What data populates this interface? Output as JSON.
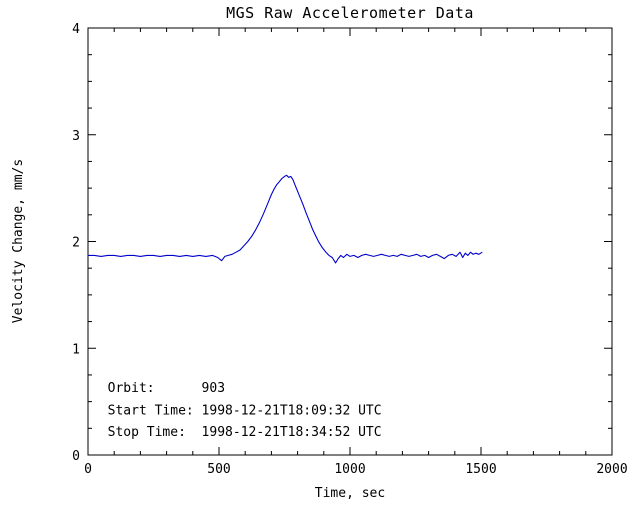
{
  "chart_data": {
    "type": "line",
    "title": "MGS Raw Accelerometer Data",
    "xlabel": "Time, sec",
    "ylabel": "Velocity Change, mm/s",
    "xlim": [
      0,
      2000
    ],
    "ylim": [
      0,
      4
    ],
    "xticks": [
      0,
      500,
      1000,
      1500,
      2000
    ],
    "yticks": [
      0,
      1,
      2,
      3,
      4
    ],
    "x_minor_step": 100,
    "y_minor_step": 0.25,
    "grid": false,
    "background_color": "#ffffff",
    "axis_color": "#000000",
    "line_color": "#0000cc",
    "series": [
      {
        "name": "velocity-change",
        "points": [
          [
            0,
            1.87
          ],
          [
            25,
            1.87
          ],
          [
            50,
            1.86
          ],
          [
            75,
            1.87
          ],
          [
            100,
            1.87
          ],
          [
            125,
            1.86
          ],
          [
            150,
            1.87
          ],
          [
            175,
            1.87
          ],
          [
            200,
            1.86
          ],
          [
            225,
            1.87
          ],
          [
            250,
            1.87
          ],
          [
            275,
            1.86
          ],
          [
            300,
            1.87
          ],
          [
            325,
            1.87
          ],
          [
            350,
            1.86
          ],
          [
            375,
            1.87
          ],
          [
            400,
            1.86
          ],
          [
            425,
            1.87
          ],
          [
            450,
            1.86
          ],
          [
            475,
            1.87
          ],
          [
            495,
            1.85
          ],
          [
            510,
            1.82
          ],
          [
            522,
            1.86
          ],
          [
            535,
            1.87
          ],
          [
            550,
            1.88
          ],
          [
            565,
            1.9
          ],
          [
            580,
            1.92
          ],
          [
            595,
            1.96
          ],
          [
            610,
            2.0
          ],
          [
            625,
            2.05
          ],
          [
            640,
            2.11
          ],
          [
            655,
            2.18
          ],
          [
            670,
            2.26
          ],
          [
            685,
            2.35
          ],
          [
            700,
            2.44
          ],
          [
            710,
            2.49
          ],
          [
            720,
            2.53
          ],
          [
            730,
            2.56
          ],
          [
            740,
            2.59
          ],
          [
            750,
            2.61
          ],
          [
            758,
            2.62
          ],
          [
            766,
            2.6
          ],
          [
            774,
            2.61
          ],
          [
            782,
            2.58
          ],
          [
            790,
            2.53
          ],
          [
            800,
            2.47
          ],
          [
            810,
            2.41
          ],
          [
            820,
            2.35
          ],
          [
            832,
            2.27
          ],
          [
            845,
            2.19
          ],
          [
            858,
            2.11
          ],
          [
            870,
            2.05
          ],
          [
            882,
            1.99
          ],
          [
            895,
            1.94
          ],
          [
            908,
            1.9
          ],
          [
            920,
            1.87
          ],
          [
            932,
            1.85
          ],
          [
            945,
            1.8
          ],
          [
            955,
            1.84
          ],
          [
            965,
            1.87
          ],
          [
            975,
            1.85
          ],
          [
            988,
            1.88
          ],
          [
            1000,
            1.86
          ],
          [
            1015,
            1.87
          ],
          [
            1030,
            1.85
          ],
          [
            1045,
            1.87
          ],
          [
            1060,
            1.88
          ],
          [
            1075,
            1.87
          ],
          [
            1090,
            1.86
          ],
          [
            1105,
            1.87
          ],
          [
            1120,
            1.88
          ],
          [
            1135,
            1.87
          ],
          [
            1150,
            1.86
          ],
          [
            1165,
            1.87
          ],
          [
            1180,
            1.86
          ],
          [
            1195,
            1.88
          ],
          [
            1210,
            1.87
          ],
          [
            1225,
            1.86
          ],
          [
            1240,
            1.87
          ],
          [
            1255,
            1.88
          ],
          [
            1270,
            1.86
          ],
          [
            1285,
            1.87
          ],
          [
            1300,
            1.85
          ],
          [
            1315,
            1.87
          ],
          [
            1330,
            1.88
          ],
          [
            1345,
            1.86
          ],
          [
            1360,
            1.84
          ],
          [
            1375,
            1.87
          ],
          [
            1390,
            1.88
          ],
          [
            1405,
            1.86
          ],
          [
            1420,
            1.9
          ],
          [
            1430,
            1.85
          ],
          [
            1440,
            1.89
          ],
          [
            1450,
            1.87
          ],
          [
            1460,
            1.9
          ],
          [
            1470,
            1.88
          ],
          [
            1480,
            1.89
          ],
          [
            1492,
            1.88
          ],
          [
            1505,
            1.9
          ]
        ]
      }
    ],
    "annotations": [
      {
        "x": 75,
        "y": 0.59,
        "text": "Orbit:      903"
      },
      {
        "x": 75,
        "y": 0.38,
        "text": "Start Time: 1998-12-21T18:09:32 UTC"
      },
      {
        "x": 75,
        "y": 0.18,
        "text": "Stop Time:  1998-12-21T18:34:52 UTC"
      }
    ]
  }
}
